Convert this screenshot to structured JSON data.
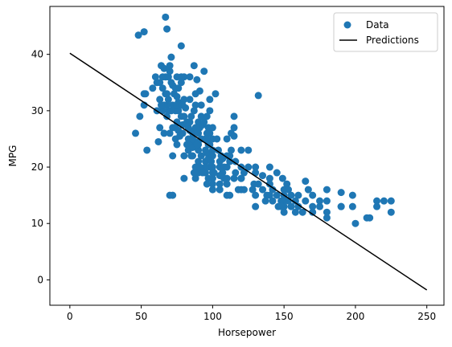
{
  "chart_data": {
    "type": "scatter",
    "xlabel": "Horsepower",
    "ylabel": "MPG",
    "xlim": [
      -14,
      262
    ],
    "ylim": [
      -4.5,
      48.5
    ],
    "xticks": [
      0,
      50,
      100,
      150,
      200,
      250
    ],
    "yticks": [
      0,
      10,
      20,
      30,
      40
    ],
    "grid": false,
    "legend": {
      "placement": "top-right",
      "entries": [
        {
          "label": "Data",
          "kind": "marker",
          "color": "#1f77b4"
        },
        {
          "label": "Predictions",
          "kind": "line",
          "color": "#000000"
        }
      ]
    },
    "series": [
      {
        "name": "Data",
        "kind": "scatter",
        "color": "#1f77b4",
        "points": [
          [
            46,
            26
          ],
          [
            48,
            43.4
          ],
          [
            49,
            29
          ],
          [
            52,
            44
          ],
          [
            52,
            31
          ],
          [
            53,
            33
          ],
          [
            54,
            23
          ],
          [
            60,
            36
          ],
          [
            61,
            35
          ],
          [
            62,
            24.5
          ],
          [
            63,
            32
          ],
          [
            63,
            27
          ],
          [
            64,
            38
          ],
          [
            65,
            34
          ],
          [
            65,
            30
          ],
          [
            66,
            37.5
          ],
          [
            67,
            36
          ],
          [
            67,
            46.6
          ],
          [
            67,
            33
          ],
          [
            68,
            31
          ],
          [
            68,
            44.5
          ],
          [
            68,
            29
          ],
          [
            69,
            32
          ],
          [
            69,
            30
          ],
          [
            70,
            26
          ],
          [
            70,
            37
          ],
          [
            70,
            38
          ],
          [
            71,
            35
          ],
          [
            71,
            39.5
          ],
          [
            72,
            34.5
          ],
          [
            72,
            31
          ],
          [
            72,
            27
          ],
          [
            72,
            15
          ],
          [
            72,
            22
          ],
          [
            73,
            33
          ],
          [
            74,
            30
          ],
          [
            74,
            27
          ],
          [
            74,
            25
          ],
          [
            75,
            28
          ],
          [
            75,
            32.5
          ],
          [
            75,
            36
          ],
          [
            75,
            24
          ],
          [
            76,
            26.5
          ],
          [
            76,
            31.5
          ],
          [
            76,
            30
          ],
          [
            77,
            25.5
          ],
          [
            78,
            35
          ],
          [
            78,
            41.5
          ],
          [
            78,
            31
          ],
          [
            78,
            29
          ],
          [
            79,
            26
          ],
          [
            79,
            27.5
          ],
          [
            80,
            36
          ],
          [
            80,
            32
          ],
          [
            80,
            22
          ],
          [
            80,
            18
          ],
          [
            81,
            30.5
          ],
          [
            82,
            24
          ],
          [
            82,
            28
          ],
          [
            83,
            27
          ],
          [
            83,
            23
          ],
          [
            84,
            36
          ],
          [
            84,
            26.5
          ],
          [
            84,
            32
          ],
          [
            85,
            29
          ],
          [
            85,
            25
          ],
          [
            85,
            24
          ],
          [
            86,
            26
          ],
          [
            86,
            22
          ],
          [
            86,
            23.5
          ],
          [
            87,
            38
          ],
          [
            87,
            30
          ],
          [
            88,
            31
          ],
          [
            88,
            27
          ],
          [
            88,
            24.5
          ],
          [
            88,
            20
          ],
          [
            88,
            18
          ],
          [
            89,
            35.5
          ],
          [
            90,
            28
          ],
          [
            90,
            26
          ],
          [
            90,
            24
          ],
          [
            90,
            23
          ],
          [
            90,
            21
          ],
          [
            90,
            19
          ],
          [
            91,
            33.5
          ],
          [
            91,
            27
          ],
          [
            92,
            29
          ],
          [
            92,
            25
          ],
          [
            92,
            22
          ],
          [
            92,
            19.5
          ],
          [
            93,
            27.5
          ],
          [
            94,
            37
          ],
          [
            94,
            28
          ],
          [
            95,
            25
          ],
          [
            95,
            23
          ],
          [
            95,
            21
          ],
          [
            95,
            19
          ],
          [
            96,
            29
          ],
          [
            96,
            26
          ],
          [
            96,
            22.5
          ],
          [
            97,
            27
          ],
          [
            97,
            24
          ],
          [
            97,
            21.5
          ],
          [
            97,
            18
          ],
          [
            98,
            32
          ],
          [
            98,
            30
          ],
          [
            98,
            26
          ],
          [
            98,
            24
          ],
          [
            98,
            20
          ],
          [
            100,
            27
          ],
          [
            100,
            25
          ],
          [
            100,
            22
          ],
          [
            100,
            20
          ],
          [
            100,
            19
          ],
          [
            100,
            18
          ],
          [
            100,
            17
          ],
          [
            100,
            16
          ],
          [
            102,
            33
          ],
          [
            103,
            25
          ],
          [
            105,
            21
          ],
          [
            105,
            20
          ],
          [
            105,
            18.5
          ],
          [
            105,
            17
          ],
          [
            106,
            22
          ],
          [
            107,
            21.5
          ],
          [
            107,
            19
          ],
          [
            108,
            20
          ],
          [
            110,
            25
          ],
          [
            110,
            22
          ],
          [
            110,
            20
          ],
          [
            110,
            18
          ],
          [
            110,
            17
          ],
          [
            112,
            21
          ],
          [
            113,
            26
          ],
          [
            113,
            23
          ],
          [
            115,
            29
          ],
          [
            115,
            27
          ],
          [
            115,
            25.5
          ],
          [
            115,
            18
          ],
          [
            116,
            19
          ],
          [
            120,
            23
          ],
          [
            120,
            20
          ],
          [
            120,
            18
          ],
          [
            120,
            16
          ],
          [
            122,
            19
          ],
          [
            125,
            23
          ],
          [
            129,
            17
          ],
          [
            130,
            13
          ],
          [
            130,
            19
          ],
          [
            130,
            20
          ],
          [
            132,
            32.7
          ],
          [
            135,
            18.5
          ],
          [
            137,
            14
          ],
          [
            140,
            20
          ],
          [
            140,
            18
          ],
          [
            140,
            17
          ],
          [
            140,
            15
          ],
          [
            142,
            16
          ],
          [
            145,
            19
          ],
          [
            145,
            15
          ],
          [
            148,
            14
          ],
          [
            150,
            16
          ],
          [
            150,
            15
          ],
          [
            150,
            14
          ],
          [
            150,
            13
          ],
          [
            150,
            12
          ],
          [
            152,
            17
          ],
          [
            153,
            16
          ],
          [
            155,
            15
          ],
          [
            155,
            13
          ],
          [
            158,
            14
          ],
          [
            160,
            13
          ],
          [
            163,
            12
          ],
          [
            165,
            14
          ],
          [
            165,
            17.5
          ],
          [
            167,
            16
          ],
          [
            170,
            15
          ],
          [
            170,
            13
          ],
          [
            175,
            14
          ],
          [
            180,
            16
          ],
          [
            180,
            12
          ],
          [
            180,
            11
          ],
          [
            190,
            13
          ],
          [
            190,
            15.5
          ],
          [
            198,
            15
          ],
          [
            200,
            10
          ],
          [
            208,
            11
          ],
          [
            210,
            11
          ],
          [
            215,
            13
          ],
          [
            220,
            14
          ],
          [
            225,
            14
          ],
          [
            225,
            12
          ],
          [
            100,
            23
          ],
          [
            70,
            15
          ],
          [
            85,
            22
          ],
          [
            95,
            20
          ],
          [
            110,
            15
          ],
          [
            120,
            18
          ],
          [
            132,
            17
          ],
          [
            149,
            18
          ],
          [
            153,
            14
          ],
          [
            158,
            12
          ],
          [
            170,
            12
          ],
          [
            180,
            14
          ],
          [
            198,
            13
          ],
          [
            66,
            31
          ],
          [
            68,
            33
          ],
          [
            88,
            33
          ],
          [
            92,
            31
          ],
          [
            74,
            34
          ],
          [
            78,
            36
          ],
          [
            80,
            29
          ],
          [
            96,
            25
          ],
          [
            104,
            23
          ],
          [
            112,
            22
          ],
          [
            116,
            21
          ],
          [
            122,
            16
          ],
          [
            128,
            16
          ],
          [
            138,
            15
          ],
          [
            146,
            13
          ],
          [
            52,
            33
          ],
          [
            58,
            34
          ],
          [
            61,
            30
          ],
          [
            63,
            35
          ],
          [
            64,
            31
          ],
          [
            65,
            36
          ],
          [
            66,
            26
          ],
          [
            69,
            36
          ],
          [
            71,
            30
          ],
          [
            75,
            31
          ],
          [
            76,
            34
          ],
          [
            79,
            31
          ],
          [
            83,
            25
          ],
          [
            84,
            28
          ],
          [
            86,
            25
          ],
          [
            87,
            19
          ],
          [
            89,
            24
          ],
          [
            91,
            20
          ],
          [
            93,
            19
          ],
          [
            96,
            17
          ],
          [
            99,
            21
          ],
          [
            101,
            19
          ],
          [
            105,
            16
          ],
          [
            108,
            18
          ],
          [
            112,
            15
          ],
          [
            118,
            16
          ],
          [
            125,
            20
          ],
          [
            130,
            15
          ],
          [
            135,
            16
          ],
          [
            142,
            14
          ],
          [
            148,
            13
          ],
          [
            160,
            15
          ],
          [
            175,
            13
          ],
          [
            190,
            13
          ],
          [
            215,
            14
          ]
        ]
      },
      {
        "name": "Predictions",
        "kind": "line",
        "color": "#000000",
        "points": [
          [
            0,
            40.2
          ],
          [
            250,
            -1.8
          ]
        ]
      }
    ]
  }
}
